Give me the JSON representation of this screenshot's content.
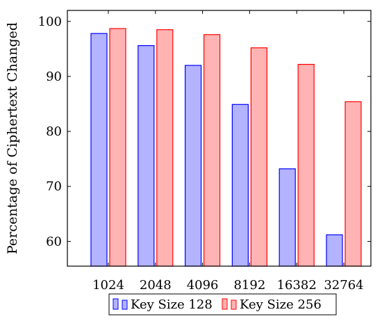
{
  "chart_data": {
    "type": "bar",
    "title": "",
    "xlabel": "",
    "ylabel": "Percentage of Ciphertext Changed",
    "categories": [
      "1024",
      "2048",
      "4096",
      "8192",
      "16382",
      "32764"
    ],
    "series": [
      {
        "name": "Key Size 128",
        "values": [
          97.8,
          95.6,
          92.0,
          84.9,
          73.2,
          61.2
        ],
        "fill": "#b3b3ff",
        "stroke": "#0000ff"
      },
      {
        "name": "Key Size 256",
        "values": [
          98.7,
          98.5,
          97.6,
          95.2,
          92.2,
          85.4
        ],
        "fill": "#ffb3b3",
        "stroke": "#ff0000"
      }
    ],
    "ylim": [
      55.5,
      102
    ],
    "yticks": [
      60,
      70,
      80,
      90,
      100
    ],
    "grid": false,
    "legend": "bottom-center"
  }
}
